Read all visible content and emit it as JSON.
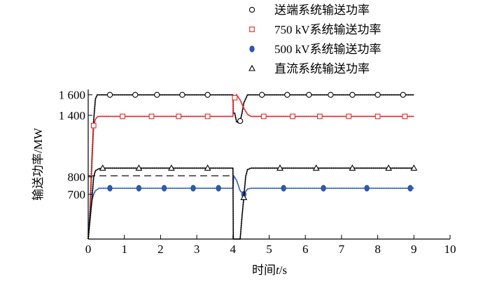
{
  "chart_data": {
    "type": "line",
    "xlabel_prefix": "时间",
    "xlabel_var": "t",
    "xlabel_unit": "/s",
    "ylabel": "输送功率/MW",
    "xlim": [
      0,
      10
    ],
    "ylim": [
      0,
      1700
    ],
    "x_ticks": [
      "0",
      "1",
      "2",
      "3",
      "4",
      "5",
      "6",
      "7",
      "8",
      "9",
      "10"
    ],
    "y_ticks": [
      {
        "value": 1600,
        "label": "1 600"
      },
      {
        "value": 1400,
        "label": "1 400"
      },
      {
        "value": 800,
        "label": "800"
      },
      {
        "value": 700,
        "label": "700"
      }
    ],
    "reference_line": {
      "y": 810,
      "style": "dashed"
    },
    "legend_placement": "top-right",
    "series": [
      {
        "name": "送端系统输送功率",
        "marker": "circle",
        "color": "#000000",
        "x": [
          0,
          0.05,
          0.1,
          0.15,
          0.2,
          0.25,
          0.3,
          4.0,
          4.01,
          4.05,
          4.1,
          4.15,
          4.2,
          4.25,
          4.3,
          4.4,
          9.0
        ],
        "y": [
          0,
          450,
          950,
          1350,
          1560,
          1600,
          1600,
          1600,
          1420,
          1420,
          1335,
          1330,
          1345,
          1420,
          1520,
          1600,
          1600
        ],
        "marker_x": [
          0.6,
          1.3,
          1.9,
          2.6,
          3.3,
          4.2,
          4.8,
          5.5,
          6.1,
          6.7,
          7.3,
          8.0,
          8.7
        ]
      },
      {
        "name": "750 kV系统输送功率",
        "marker": "square",
        "color": "#e0282d",
        "x": [
          0,
          0.05,
          0.1,
          0.15,
          0.2,
          0.25,
          0.3,
          4.0,
          4.01,
          4.1,
          4.2,
          4.3,
          4.4,
          4.5,
          9.0
        ],
        "y": [
          0,
          400,
          900,
          1300,
          1360,
          1385,
          1390,
          1390,
          1550,
          1600,
          1550,
          1470,
          1410,
          1390,
          1390
        ],
        "marker_x": [
          0.15,
          0.95,
          1.75,
          2.5,
          3.3,
          4.05,
          4.85,
          5.65,
          6.4,
          7.2,
          8.0,
          8.75
        ]
      },
      {
        "name": "500 kV系统输送功率",
        "marker": "circle_filled",
        "color": "#2f5bb5",
        "x": [
          0,
          0.05,
          0.1,
          0.15,
          0.2,
          0.3,
          0.4,
          0.5,
          4.0,
          4.02,
          4.1,
          4.2,
          4.3,
          4.4,
          4.5,
          9.0
        ],
        "y": [
          80,
          350,
          600,
          700,
          720,
          735,
          735,
          735,
          735,
          810,
          780,
          720,
          700,
          730,
          735,
          735
        ],
        "marker_x": [
          0.6,
          1.4,
          2.1,
          2.9,
          3.6,
          4.3,
          5.4,
          6.5,
          7.7,
          8.9
        ]
      },
      {
        "name": "直流系统输送功率",
        "marker": "triangle",
        "color": "#000000",
        "x": [
          0,
          0.05,
          0.1,
          0.15,
          0.2,
          0.3,
          0.4,
          0.5,
          4.0,
          4.01,
          4.05,
          4.1,
          4.15,
          4.2,
          4.25,
          4.3,
          4.35,
          4.4,
          4.5,
          9.0
        ],
        "y": [
          0,
          300,
          600,
          800,
          860,
          880,
          885,
          885,
          885,
          0,
          0,
          0,
          0,
          0,
          350,
          650,
          800,
          870,
          885,
          885
        ],
        "marker_x": [
          0.4,
          1.4,
          2.3,
          3.3,
          4.3,
          5.3,
          6.3,
          7.3,
          8.3,
          9.0
        ]
      }
    ]
  }
}
